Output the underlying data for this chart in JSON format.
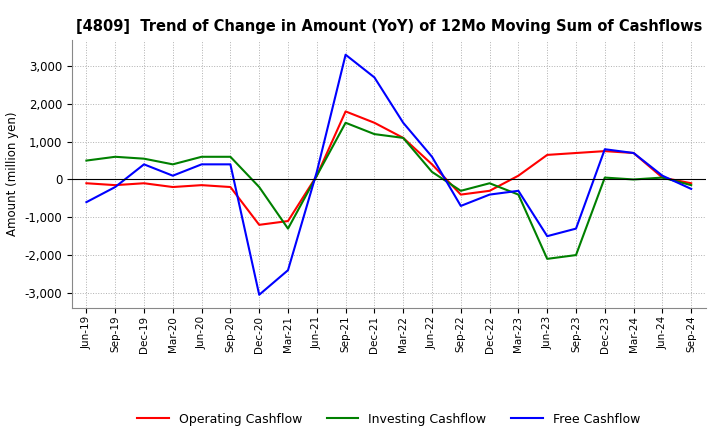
{
  "title": "[4809]  Trend of Change in Amount (YoY) of 12Mo Moving Sum of Cashflows",
  "ylabel": "Amount (million yen)",
  "x_labels": [
    "Jun-19",
    "Sep-19",
    "Dec-19",
    "Mar-20",
    "Jun-20",
    "Sep-20",
    "Dec-20",
    "Mar-21",
    "Jun-21",
    "Sep-21",
    "Dec-21",
    "Mar-22",
    "Jun-22",
    "Sep-22",
    "Dec-22",
    "Mar-23",
    "Jun-23",
    "Sep-23",
    "Dec-23",
    "Mar-24",
    "Jun-24",
    "Sep-24"
  ],
  "operating": [
    -100,
    -150,
    -100,
    -200,
    -150,
    -200,
    -1200,
    -1100,
    100,
    1800,
    1500,
    1100,
    400,
    -400,
    -300,
    100,
    650,
    700,
    750,
    700,
    50,
    -100
  ],
  "investing": [
    500,
    600,
    550,
    400,
    600,
    600,
    -200,
    -1300,
    100,
    1500,
    1200,
    1100,
    200,
    -300,
    -100,
    -400,
    -2100,
    -2000,
    50,
    0,
    50,
    -150
  ],
  "free": [
    -600,
    -200,
    400,
    100,
    400,
    400,
    -3050,
    -2400,
    200,
    3300,
    2700,
    1500,
    600,
    -700,
    -400,
    -300,
    -1500,
    -1300,
    800,
    700,
    100,
    -250
  ],
  "ylim": [
    -3400,
    3700
  ],
  "yticks": [
    -3000,
    -2000,
    -1000,
    0,
    1000,
    2000,
    3000
  ],
  "operating_color": "#ff0000",
  "investing_color": "#008000",
  "free_color": "#0000ff",
  "background_color": "#ffffff",
  "grid_color": "#b0b0b0"
}
